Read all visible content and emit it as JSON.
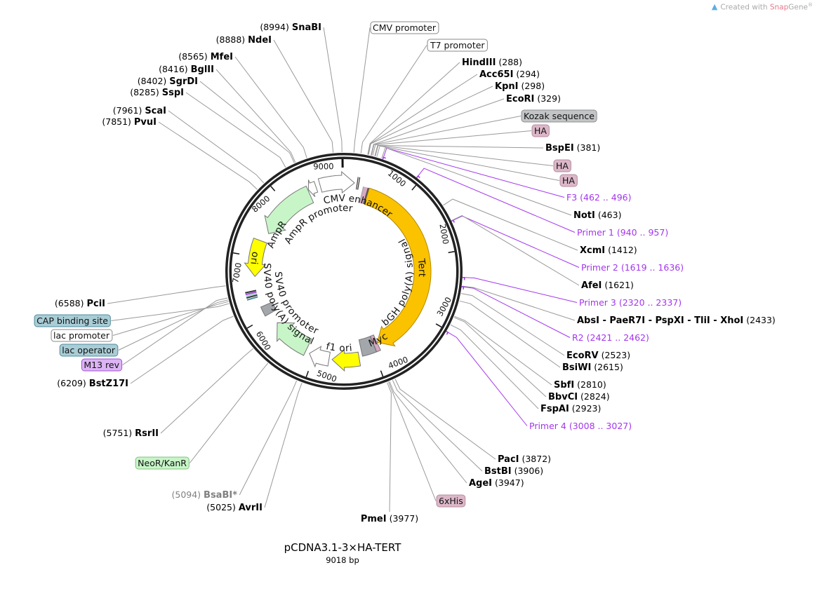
{
  "logo": {
    "prefix": "Created with ",
    "brand_a": "Snap",
    "brand_b": "Gene",
    "mark": "®"
  },
  "plasmid": {
    "name": "pCDNA3.1-3×HA-TERT",
    "length": "9018 bp",
    "length_bp": 9018
  },
  "ticks": [
    "1000",
    "2000",
    "3000",
    "4000",
    "5000",
    "6000",
    "7000",
    "8000",
    "9000"
  ],
  "features": [
    {
      "label": "CMV enhancer",
      "start": 8630,
      "end": 170,
      "dir": 1,
      "color": "#ffffff"
    },
    {
      "label": "Tert",
      "start": 425,
      "end": 3880,
      "dir": 1,
      "color": "#fbc200"
    },
    {
      "label": "Myc",
      "start": 3885,
      "end": 3955,
      "dir": 0,
      "color": "#d8a8c0"
    },
    {
      "label": "bGH poly(A) signal",
      "start": 3960,
      "end": 4200,
      "dir": 0,
      "color": "#a3a6ab"
    },
    {
      "label": "f1 ori",
      "start": 4260,
      "end": 4700,
      "dir": 1,
      "color": "#ffff00"
    },
    {
      "label": "SV40 promoter",
      "start": 4750,
      "end": 5080,
      "dir": 1,
      "color": "#ffffff"
    },
    {
      "label": "NeoR/KanR",
      "start": 5150,
      "end": 5820,
      "dir": 1,
      "color": "#c8f5c8"
    },
    {
      "label": "SV40 poly(A) signal",
      "start": 6020,
      "end": 6180,
      "dir": 0,
      "color": "#a3a6ab"
    },
    {
      "label": "ori",
      "start": 6680,
      "end": 7270,
      "dir": -1,
      "color": "#ffff00"
    },
    {
      "label": "AmpR",
      "start": 7430,
      "end": 8420,
      "dir": -1,
      "color": "#c8f5c8"
    },
    {
      "label": "AmpR promoter",
      "start": 8430,
      "end": 8560,
      "dir": -1,
      "color": "#ffffff"
    }
  ],
  "callouts": [
    {
      "type": "site",
      "name": "SnaBI",
      "pos": "8994"
    },
    {
      "type": "site",
      "name": "NdeI",
      "pos": "8888"
    },
    {
      "type": "site",
      "name": "MfeI",
      "pos": "8565"
    },
    {
      "type": "site",
      "name": "BglII",
      "pos": "8416"
    },
    {
      "type": "site",
      "name": "SgrDI",
      "pos": "8402"
    },
    {
      "type": "site",
      "name": "SspI",
      "pos": "8285"
    },
    {
      "type": "site",
      "name": "ScaI",
      "pos": "7961"
    },
    {
      "type": "site",
      "name": "PvuI",
      "pos": "7851"
    },
    {
      "type": "feature",
      "label": "CMV promoter",
      "color": "#ffffff",
      "border": "#888888"
    },
    {
      "type": "feature",
      "label": "T7 promoter",
      "color": "#ffffff",
      "border": "#888888"
    },
    {
      "type": "site",
      "name": "HindIII",
      "pos": "288"
    },
    {
      "type": "site",
      "name": "Acc65I",
      "pos": "294"
    },
    {
      "type": "site",
      "name": "KpnI",
      "pos": "298"
    },
    {
      "type": "site",
      "name": "EcoRI",
      "pos": "329"
    },
    {
      "type": "feature",
      "label": "Kozak sequence",
      "color": "#c2c4c6",
      "border": "#8e9092"
    },
    {
      "type": "feature",
      "label": "HA",
      "color": "#dcb7c8",
      "border": "#b58da0"
    },
    {
      "type": "site",
      "name": "BspEI",
      "pos": "381"
    },
    {
      "type": "feature",
      "label": "HA",
      "color": "#dcb7c8",
      "border": "#b58da0"
    },
    {
      "type": "feature",
      "label": "HA",
      "color": "#dcb7c8",
      "border": "#b58da0"
    },
    {
      "type": "primer",
      "name": "F3",
      "range": "462 .. 496"
    },
    {
      "type": "site",
      "name": "NotI",
      "pos": "463"
    },
    {
      "type": "primer",
      "name": "Primer 1",
      "range": "940 .. 957"
    },
    {
      "type": "site",
      "name": "XcmI",
      "pos": "1412"
    },
    {
      "type": "primer",
      "name": "Primer 2",
      "range": "1619 .. 1636"
    },
    {
      "type": "site",
      "name": "AfeI",
      "pos": "1621"
    },
    {
      "type": "primer",
      "name": "Primer 3",
      "range": "2320 .. 2337"
    },
    {
      "type": "site",
      "name": "AbsI - PaeR7I - PspXI - TliI - XhoI",
      "pos": "2433"
    },
    {
      "type": "primer",
      "name": "R2",
      "range": "2421 .. 2462"
    },
    {
      "type": "site",
      "name": "EcoRV",
      "pos": "2523"
    },
    {
      "type": "site",
      "name": "BsiWI",
      "pos": "2615"
    },
    {
      "type": "site",
      "name": "SbfI",
      "pos": "2810"
    },
    {
      "type": "site",
      "name": "BbvCI",
      "pos": "2824"
    },
    {
      "type": "site",
      "name": "FspAI",
      "pos": "2923"
    },
    {
      "type": "primer",
      "name": "Primer 4",
      "range": "3008 .. 3027"
    },
    {
      "type": "site",
      "name": "PacI",
      "pos": "3872"
    },
    {
      "type": "site",
      "name": "BstBI",
      "pos": "3906"
    },
    {
      "type": "site",
      "name": "AgeI",
      "pos": "3947"
    },
    {
      "type": "feature",
      "label": "6xHis",
      "color": "#dcb7c8",
      "border": "#b58da0"
    },
    {
      "type": "site",
      "name": "PmeI",
      "pos": "3977"
    },
    {
      "type": "site",
      "name": "AvrII",
      "pos": "5025"
    },
    {
      "type": "site",
      "name": "BsaBI*",
      "pos": "5094",
      "muted": true
    },
    {
      "type": "feature",
      "label": "NeoR/KanR",
      "color": "#c8f5c8",
      "border": "#7fc27f"
    },
    {
      "type": "site",
      "name": "RsrII",
      "pos": "5751"
    },
    {
      "type": "site",
      "name": "BstZ17I",
      "pos": "6209"
    },
    {
      "type": "feature",
      "label": "M13 rev",
      "color": "#dcb4f5",
      "border": "#a450d8"
    },
    {
      "type": "feature",
      "label": "lac operator",
      "color": "#a9cdd6",
      "border": "#4f8c9c"
    },
    {
      "type": "feature",
      "label": "lac promoter",
      "color": "#ffffff",
      "border": "#888888"
    },
    {
      "type": "feature",
      "label": "CAP binding site",
      "color": "#a9cdd6",
      "border": "#4f8c9c"
    },
    {
      "type": "site",
      "name": "PciI",
      "pos": "6588"
    }
  ],
  "colors": {
    "primer": "#a335ee",
    "ring": "#222222",
    "leader": "#999999",
    "muted": "#808080"
  }
}
